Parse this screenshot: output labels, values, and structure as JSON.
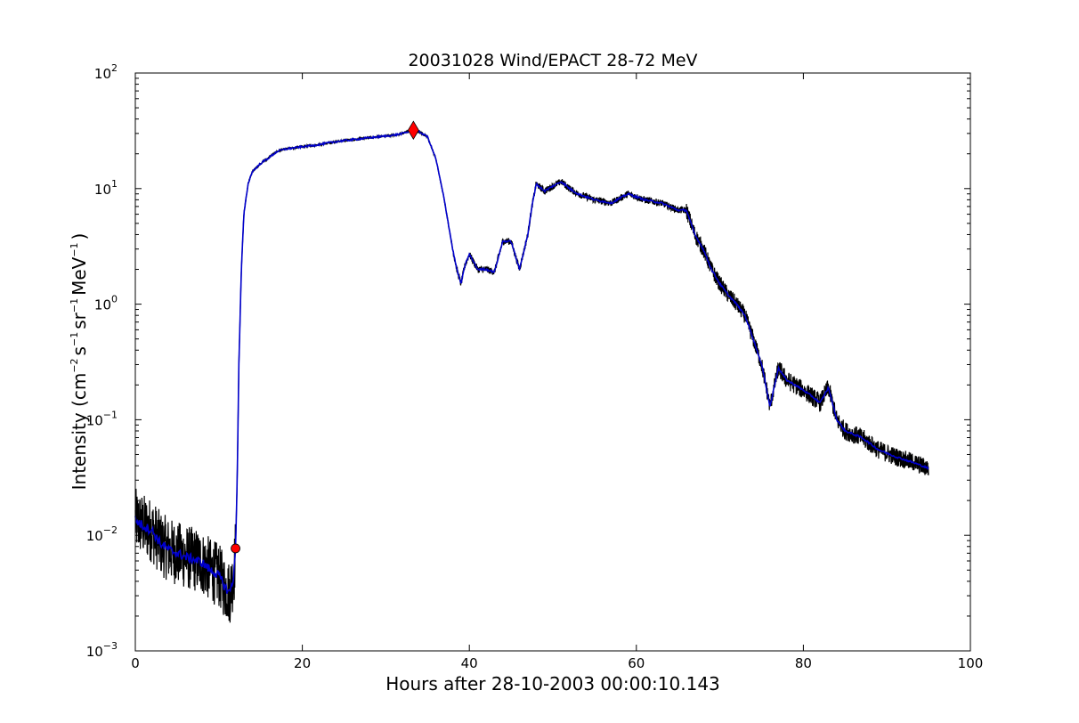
{
  "chart_data": {
    "type": "line",
    "title": "20031028 Wind/EPACT 28-72 MeV",
    "xlabel": "Hours after 28-10-2003 00:00:10.143",
    "ylabel": {
      "prefix": "Intensity (cm",
      "exp1": "−2",
      "s": "s",
      "exp2": "−1",
      "sr": "sr",
      "exp3": "−1",
      "mev": "MeV",
      "exp4": "−1",
      "suffix": ")"
    },
    "xlim": [
      0,
      100
    ],
    "ylim": [
      0.001,
      100
    ],
    "yscale": "log",
    "grid": false,
    "x_ticks": [
      0,
      20,
      40,
      60,
      80,
      100
    ],
    "x_tick_labels": [
      "0",
      "20",
      "40",
      "60",
      "80",
      "100"
    ],
    "y_ticks": [
      0.001,
      0.01,
      0.1,
      1,
      10,
      100
    ],
    "y_tick_labels": [
      {
        "base": "10",
        "exp": "−3"
      },
      {
        "base": "10",
        "exp": "−2"
      },
      {
        "base": "10",
        "exp": "−1"
      },
      {
        "base": "10",
        "exp": "0"
      },
      {
        "base": "10",
        "exp": "1"
      },
      {
        "base": "10",
        "exp": "2"
      }
    ],
    "series": [
      {
        "color": "#0000cc",
        "style": "smoothed",
        "x": [
          0.0,
          1,
          2,
          3,
          4,
          5,
          6,
          7,
          8,
          9,
          10,
          10.8,
          11.3,
          11.8,
          12.0,
          12.2,
          12.4,
          12.7,
          13.0,
          13.5,
          14.0,
          15,
          16,
          17,
          18,
          20,
          22,
          24,
          26,
          28,
          30,
          31,
          32,
          33.3,
          34,
          35,
          36,
          37,
          38,
          38.5,
          39,
          39.5,
          40,
          41,
          42,
          43,
          44,
          45,
          46,
          47,
          47.5,
          48,
          49,
          50,
          51,
          52,
          53,
          55,
          57,
          59,
          61,
          63,
          65,
          66,
          67,
          68,
          69,
          70,
          71,
          72,
          73,
          74,
          75,
          75.5,
          76,
          77,
          78,
          79,
          80,
          81,
          82,
          83,
          84,
          85,
          87,
          89,
          91,
          93,
          95
        ],
        "y": [
          0.0135,
          0.012,
          0.011,
          0.0085,
          0.0075,
          0.007,
          0.0065,
          0.0062,
          0.0058,
          0.005,
          0.0045,
          0.0035,
          0.0032,
          0.0045,
          0.0077,
          0.03,
          0.3,
          2.0,
          6.0,
          11.0,
          14.0,
          16.5,
          18.5,
          21.0,
          22.0,
          23.0,
          24.0,
          25.5,
          26.5,
          27.5,
          28.5,
          29.0,
          30.0,
          32.0,
          31.0,
          28.0,
          18.0,
          8.0,
          3.0,
          2.0,
          1.5,
          2.2,
          2.7,
          2.0,
          2.0,
          1.9,
          3.5,
          3.5,
          2.0,
          4.0,
          7.0,
          11.0,
          9.5,
          10.5,
          11.5,
          10.0,
          9.0,
          8.0,
          7.5,
          9.0,
          8.0,
          7.5,
          6.5,
          6.5,
          4.0,
          3.0,
          2.0,
          1.5,
          1.2,
          1.0,
          0.8,
          0.5,
          0.3,
          0.2,
          0.13,
          0.28,
          0.22,
          0.2,
          0.18,
          0.16,
          0.14,
          0.19,
          0.1,
          0.08,
          0.07,
          0.055,
          0.048,
          0.043,
          0.038
        ]
      },
      {
        "color": "#000000",
        "style": "raw",
        "x_range": [
          0,
          95
        ]
      }
    ],
    "markers": [
      {
        "shape": "circle",
        "x": 12.0,
        "y": 0.0077,
        "color": "#ff0000"
      },
      {
        "shape": "diamond",
        "x": 33.3,
        "y": 32.0,
        "color": "#ff0000"
      }
    ]
  }
}
